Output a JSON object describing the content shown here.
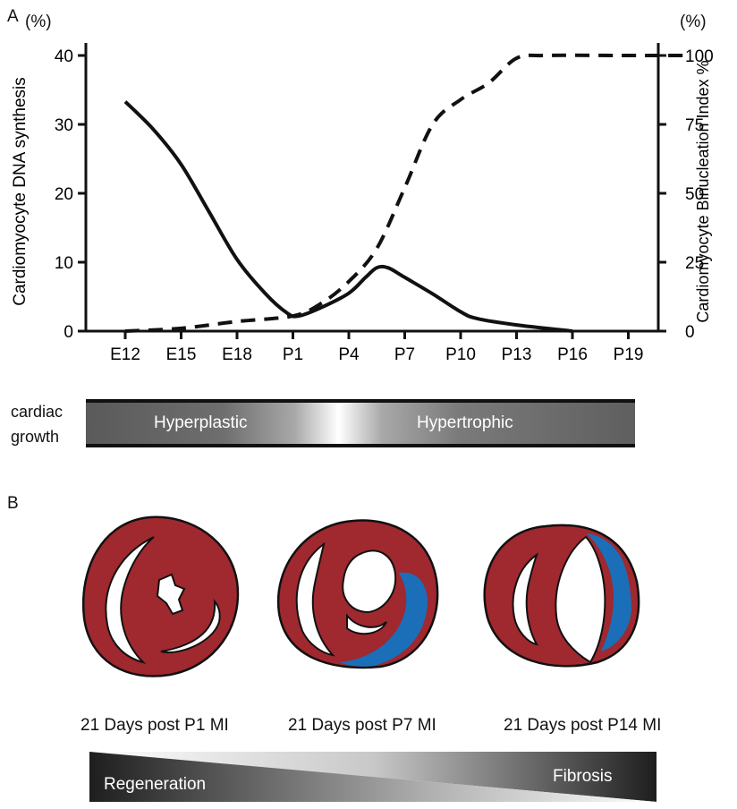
{
  "panel_a": {
    "label": "A",
    "left_unit": "(%)",
    "right_unit": "(%)",
    "left_axis_label": "Cardiomyocyte DNA synthesis",
    "right_axis_label": "Cardiomyocyte Binucleation Index %",
    "left_ticks": [
      "0",
      "10",
      "20",
      "30",
      "40"
    ],
    "right_ticks": [
      "0",
      "25",
      "50",
      "75",
      "100"
    ],
    "x_ticks": [
      "E12",
      "E15",
      "E18",
      "P1",
      "P4",
      "P7",
      "P10",
      "P13",
      "P16",
      "P19"
    ]
  },
  "chart_data": {
    "type": "line",
    "x": [
      "E12",
      "E15",
      "E18",
      "P1",
      "P4",
      "P7",
      "P10",
      "P13",
      "P16",
      "P19"
    ],
    "y_left_range": [
      0,
      40
    ],
    "y_right_range": [
      0,
      100
    ],
    "series": [
      {
        "style": "solid",
        "axis": "left",
        "points": [
          [
            0,
            33.3
          ],
          [
            0.5,
            29.3
          ],
          [
            1,
            24.2
          ],
          [
            1.5,
            17.3
          ],
          [
            2,
            10.4
          ],
          [
            2.5,
            5.5
          ],
          [
            2.9,
            2.6
          ],
          [
            3.1,
            2.2
          ],
          [
            3.5,
            3.4
          ],
          [
            4,
            5.5
          ],
          [
            4.3,
            7.8
          ],
          [
            4.5,
            9.2
          ],
          [
            4.7,
            9.2
          ],
          [
            5,
            7.8
          ],
          [
            5.5,
            5.4
          ],
          [
            6,
            2.8
          ],
          [
            6.3,
            1.8
          ],
          [
            7,
            0.9
          ],
          [
            8,
            0
          ]
        ]
      },
      {
        "style": "dashed",
        "axis": "right",
        "points": [
          [
            0,
            0
          ],
          [
            1,
            1
          ],
          [
            2,
            3.5
          ],
          [
            3,
            5.5
          ],
          [
            3.5,
            10
          ],
          [
            4,
            18
          ],
          [
            4.5,
            30
          ],
          [
            5,
            52
          ],
          [
            5.5,
            75
          ],
          [
            6,
            84
          ],
          [
            6.5,
            90
          ],
          [
            7,
            99
          ],
          [
            7.5,
            100
          ],
          [
            9,
            100
          ],
          [
            10,
            100
          ]
        ]
      }
    ]
  },
  "growth_bar": {
    "label_line1": "cardiac",
    "label_line2": "growth",
    "left_text": "Hyperplastic",
    "right_text": "Hypertrophic"
  },
  "panel_b": {
    "label": "B",
    "captions": [
      "21 Days post P1 MI",
      "21 Days post P7 MI",
      "21 Days post P14 MI"
    ],
    "colors": {
      "myocardium": "#a0282f",
      "scar": "#1a6fb8"
    }
  },
  "outcome_bar": {
    "left_text": "Regeneration",
    "right_text": "Fibrosis"
  }
}
